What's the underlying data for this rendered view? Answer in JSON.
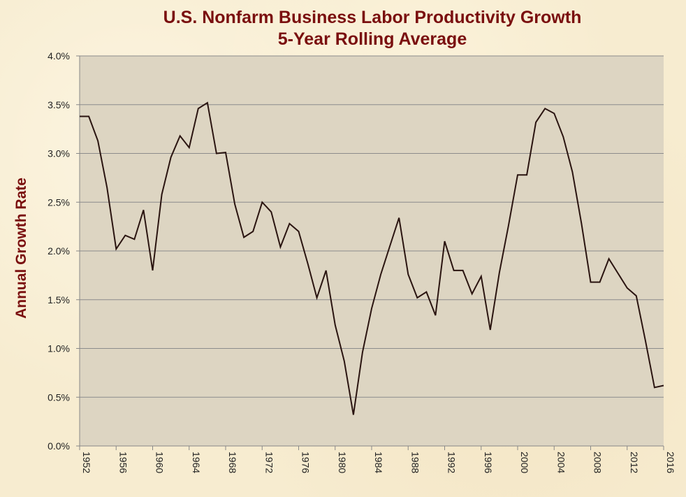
{
  "chart_data": {
    "type": "line",
    "title": "U.S. Nonfarm Business Labor Productivity Growth",
    "subtitle": "5-Year Rolling Average",
    "xlabel": "",
    "ylabel": "Annual Growth Rate",
    "xlim": [
      1952,
      2016
    ],
    "ylim": [
      0,
      4
    ],
    "y_ticks": [
      "0.0%",
      "0.5%",
      "1.0%",
      "1.5%",
      "2.0%",
      "2.5%",
      "3.0%",
      "3.5%",
      "4.0%"
    ],
    "x_ticks": [
      "1952",
      "1956",
      "1960",
      "1964",
      "1968",
      "1972",
      "1976",
      "1980",
      "1984",
      "1988",
      "1992",
      "1996",
      "2000",
      "2004",
      "2008",
      "2012",
      "2016"
    ],
    "grid": true,
    "legend": "none",
    "colors": {
      "line": "#2a1410",
      "plot_bg": "#ddd5c2",
      "grid": "#8c8c8c",
      "title": "#7a0f0f"
    },
    "series": [
      {
        "x": [
          1952,
          1953,
          1954,
          1955,
          1956,
          1957,
          1958,
          1959,
          1960,
          1961,
          1962,
          1963,
          1964,
          1965,
          1966,
          1967,
          1968,
          1969,
          1970,
          1971,
          1972,
          1973,
          1974,
          1975,
          1976,
          1977,
          1978,
          1979,
          1980,
          1981,
          1982,
          1983,
          1984,
          1985,
          1986,
          1987,
          1988,
          1989,
          1990,
          1991,
          1992,
          1993,
          1994,
          1995,
          1996,
          1997,
          1998,
          1999,
          2000,
          2001,
          2002,
          2003,
          2004,
          2005,
          2006,
          2007,
          2008,
          2009,
          2010,
          2011,
          2012,
          2013,
          2014,
          2015,
          2016
        ],
        "values": [
          3.38,
          3.38,
          3.13,
          2.65,
          2.02,
          2.16,
          2.12,
          2.42,
          1.8,
          2.58,
          2.96,
          3.18,
          3.06,
          3.46,
          3.52,
          3.0,
          3.01,
          2.48,
          2.14,
          2.2,
          2.5,
          2.4,
          2.04,
          2.28,
          2.2,
          1.87,
          1.52,
          1.8,
          1.24,
          0.87,
          0.32,
          0.96,
          1.41,
          1.76,
          2.05,
          2.34,
          1.76,
          1.52,
          1.58,
          1.34,
          2.1,
          1.8,
          1.8,
          1.56,
          1.74,
          1.19,
          1.78,
          2.26,
          2.78,
          2.78,
          3.32,
          3.46,
          3.41,
          3.17,
          2.81,
          2.28,
          1.68,
          1.68,
          1.92,
          1.77,
          1.62,
          1.54,
          1.08,
          0.6,
          0.62
        ]
      }
    ]
  }
}
